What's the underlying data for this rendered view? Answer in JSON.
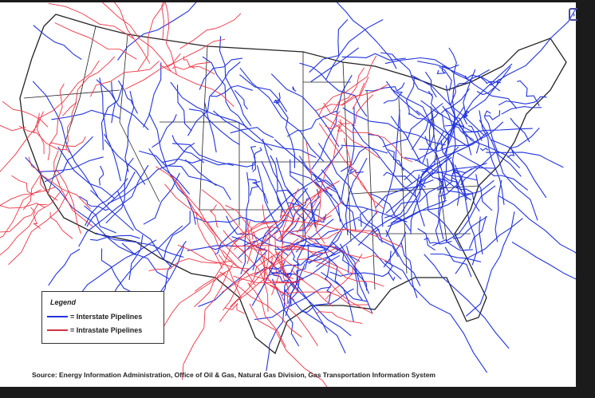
{
  "map": {
    "legend": {
      "title": "Legend",
      "items": [
        {
          "label": "= Interstate Pipelines",
          "color": "#2233dd"
        },
        {
          "label": "= Intrastate Pipelines",
          "color": "#ee3344"
        }
      ]
    },
    "source": "Source: Energy Information Administration, Office of Oil & Gas, Natural Gas Division, Gas Transportation Information System",
    "nav_icon": "chevron-right-icon"
  }
}
